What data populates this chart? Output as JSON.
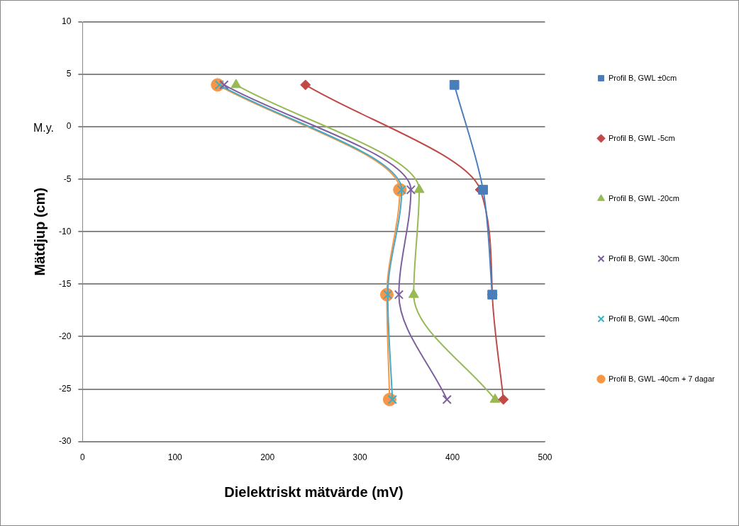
{
  "chart_data": {
    "type": "line",
    "xlabel": "Dielektriskt mätvärde (mV)",
    "ylabel": "Mätdjup (cm)",
    "annotations": [
      "M.y."
    ],
    "xlim": [
      0,
      500
    ],
    "xticks": [
      0,
      100,
      200,
      300,
      400,
      500
    ],
    "ylim": [
      -30,
      10
    ],
    "yticks": [
      -30,
      -25,
      -20,
      -15,
      -10,
      -5,
      0,
      5,
      10
    ],
    "grid": "y",
    "legend": "right",
    "series": [
      {
        "name": "Profil B, GWL ±0cm",
        "color": "#4a7ebb",
        "marker": "square",
        "x": [
          402,
          433,
          443
        ],
        "values": [
          4,
          -6,
          -16
        ]
      },
      {
        "name": "Profil B, GWL -5cm",
        "color": "#be4b48",
        "marker": "diamond",
        "x": [
          241,
          430,
          443,
          455
        ],
        "values": [
          4,
          -6,
          -16,
          -26
        ]
      },
      {
        "name": "Profil B, GWL -20cm",
        "color": "#98b954",
        "marker": "triangle",
        "x": [
          166,
          364,
          358,
          446
        ],
        "values": [
          4,
          -6,
          -16,
          -26
        ]
      },
      {
        "name": "Profil B, GWL -30cm",
        "color": "#7d60a0",
        "marker": "cross",
        "x": [
          153,
          355,
          342,
          394
        ],
        "values": [
          4,
          -6,
          -16,
          -26
        ]
      },
      {
        "name": "Profil B, GWL -40cm",
        "color": "#46aac5",
        "marker": "cross",
        "x": [
          148,
          345,
          330,
          335
        ],
        "values": [
          4,
          -6,
          -16,
          -26
        ]
      },
      {
        "name": "Profil B, GWL -40cm + 7 dagar",
        "color": "#f79646",
        "marker": "circle",
        "x": [
          146,
          343,
          329,
          332
        ],
        "values": [
          4,
          -6,
          -16,
          -26
        ]
      }
    ]
  }
}
